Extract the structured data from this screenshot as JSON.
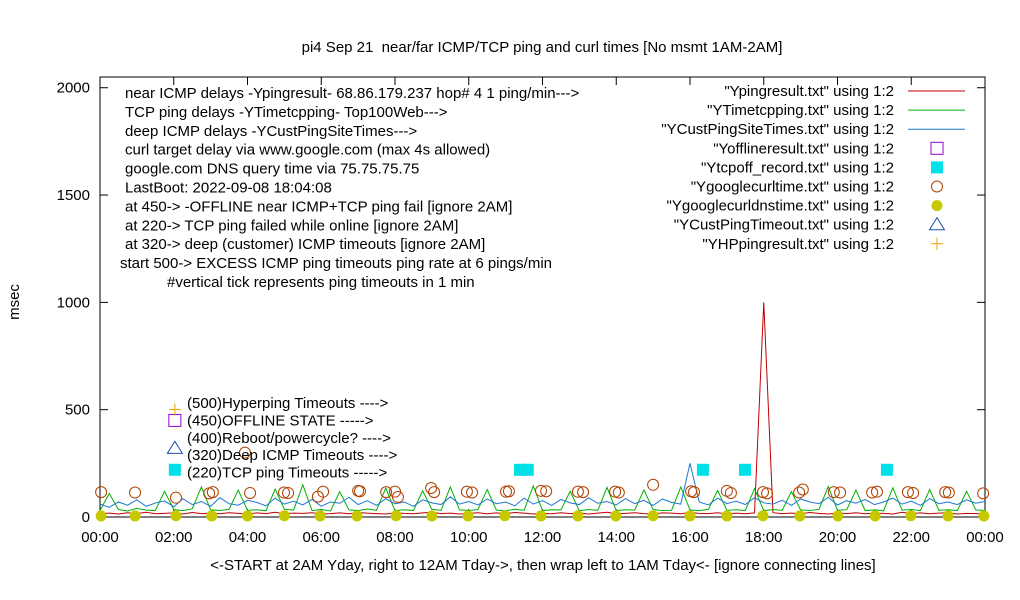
{
  "chart_data": {
    "type": "line",
    "title": "pi4 Sep 21  near/far ICMP/TCP ping and curl times [No msmt 1AM-2AM]",
    "xlabel": "<-START at 2AM Yday, right to 12AM Tday->, then wrap left to 1AM Tday<- [ignore connecting lines]",
    "ylabel": "msec",
    "xlim": [
      0,
      24
    ],
    "ylim": [
      0,
      2050
    ],
    "xticks": [
      {
        "value": 0,
        "label": "00:00"
      },
      {
        "value": 2,
        "label": "02:00"
      },
      {
        "value": 4,
        "label": "04:00"
      },
      {
        "value": 6,
        "label": "06:00"
      },
      {
        "value": 8,
        "label": "08:00"
      },
      {
        "value": 10,
        "label": "10:00"
      },
      {
        "value": 12,
        "label": "12:00"
      },
      {
        "value": 14,
        "label": "14:00"
      },
      {
        "value": 16,
        "label": "16:00"
      },
      {
        "value": 18,
        "label": "18:00"
      },
      {
        "value": 20,
        "label": "20:00"
      },
      {
        "value": 22,
        "label": "22:00"
      },
      {
        "value": 24,
        "label": "00:00"
      }
    ],
    "yticks": [
      0,
      500,
      1000,
      1500,
      2000
    ],
    "annotations": [
      "near ICMP delays -Ypingresult- 68.86.179.237 hop# 4 1 ping/min--->",
      "TCP ping delays -YTimetcpping- Top100Web--->",
      "deep ICMP delays -YCustPingSiteTimes--->",
      "curl target delay via www.google.com (max 4s allowed)",
      "google.com DNS query time via 75.75.75.75",
      "LastBoot: 2022-09-08 18:04:08",
      "at 450-> -OFFLINE near ICMP+TCP ping fail [ignore 2AM]",
      "at 220-> TCP ping failed while online [ignore 2AM]",
      "at 320-> deep (customer) ICMP timeouts [ignore 2AM]",
      "start 500-> EXCESS ICMP ping timeouts ping rate at 6 pings/min",
      "#vertical tick represents ping timeouts in 1 min"
    ],
    "key_notes": [
      "(500)Hyperping Timeouts ---->",
      "(450)OFFLINE STATE ----->",
      "(400)Reboot/powercycle? ---->",
      "(320)Deep ICMP Timeouts ---->",
      "(220)TCP ping Timeouts ----->"
    ],
    "x": [
      0,
      0.25,
      0.5,
      0.75,
      1,
      1.25,
      1.5,
      1.75,
      2,
      2.25,
      2.5,
      2.75,
      3,
      3.25,
      3.5,
      3.75,
      4,
      4.25,
      4.5,
      4.75,
      5,
      5.25,
      5.5,
      5.75,
      6,
      6.25,
      6.5,
      6.75,
      7,
      7.25,
      7.5,
      7.75,
      8,
      8.25,
      8.5,
      8.75,
      9,
      9.25,
      9.5,
      9.75,
      10,
      10.25,
      10.5,
      10.75,
      11,
      11.25,
      11.5,
      11.75,
      12,
      12.25,
      12.5,
      12.75,
      13,
      13.25,
      13.5,
      13.75,
      14,
      14.25,
      14.5,
      14.75,
      15,
      15.25,
      15.5,
      15.75,
      16,
      16.25,
      16.5,
      16.75,
      17,
      17.25,
      17.5,
      17.75,
      18,
      18.25,
      18.5,
      18.75,
      19,
      19.25,
      19.5,
      19.75,
      20,
      20.25,
      20.5,
      20.75,
      21,
      21.25,
      21.5,
      21.75,
      22,
      22.25,
      22.5,
      22.75,
      23,
      23.25,
      23.5,
      23.75,
      24
    ],
    "series": [
      {
        "name": "\"Ypingresult.txt\" using 1:2",
        "color": "#c00000",
        "style": "line",
        "values": [
          15,
          18,
          14,
          20,
          16,
          22,
          15,
          17,
          19,
          14,
          21,
          16,
          18,
          15,
          20,
          17,
          14,
          19,
          16,
          22,
          15,
          18,
          17,
          20,
          14,
          16,
          19,
          15,
          21,
          18,
          16,
          14,
          20,
          17,
          15,
          19,
          22,
          16,
          18,
          14,
          17,
          20,
          15,
          19,
          16,
          21,
          18,
          14,
          17,
          15,
          20,
          16,
          19,
          14,
          18,
          22,
          15,
          17,
          20,
          16,
          14,
          19,
          18,
          15,
          21,
          17,
          16,
          20,
          14,
          18,
          15,
          19,
          1000,
          20,
          16,
          18,
          15,
          21,
          17,
          14,
          19,
          16,
          20,
          15,
          18,
          17,
          14,
          22,
          16,
          19,
          15,
          18,
          20,
          14,
          17,
          16,
          15
        ]
      },
      {
        "name": "\"YTimetcpping.txt\" using 1:2",
        "color": "#00b000",
        "style": "line",
        "values": [
          30,
          110,
          35,
          28,
          40,
          32,
          30,
          120,
          35,
          30,
          38,
          140,
          33,
          30,
          36,
          125,
          31,
          34,
          29,
          130,
          36,
          32,
          150,
          30,
          35,
          28,
          118,
          33,
          30,
          37,
          31,
          135,
          29,
          34,
          30,
          122,
          36,
          31,
          140,
          33,
          30,
          35,
          128,
          32,
          29,
          36,
          31,
          145,
          30,
          34,
          33,
          120,
          29,
          35,
          31,
          138,
          30,
          34,
          32,
          126,
          35,
          30,
          31,
          140,
          33,
          29,
          36,
          124,
          31,
          34,
          30,
          132,
          29,
          35,
          31,
          118,
          33,
          30,
          36,
          142,
          31,
          34,
          125,
          30,
          33,
          29,
          136,
          32,
          35,
          30,
          128,
          31,
          34,
          30,
          120,
          33,
          30
        ]
      },
      {
        "name": "\"YCustPingSiteTimes.txt\" using 1:2",
        "color": "#1f78d0",
        "style": "line",
        "values": [
          60,
          45,
          70,
          55,
          80,
          50,
          65,
          75,
          48,
          85,
          58,
          72,
          50,
          90,
          62,
          55,
          78,
          68,
          52,
          88,
          60,
          74,
          56,
          82,
          50,
          70,
          64,
          92,
          58,
          76,
          54,
          86,
          62,
          70,
          50,
          80,
          66,
          58,
          94,
          60,
          72,
          56,
          84,
          62,
          70,
          52,
          88,
          60,
          76,
          54,
          82,
          66,
          58,
          90,
          64,
          72,
          56,
          86,
          62,
          78,
          54,
          84,
          68,
          60,
          250,
          70,
          56,
          88,
          62,
          74,
          58,
          90,
          66,
          60,
          78,
          54,
          84,
          70,
          62,
          92,
          56,
          76,
          64,
          82,
          58,
          70,
          88,
          60,
          74,
          54,
          86,
          62,
          70,
          58,
          80,
          64,
          72
        ]
      },
      {
        "name": "\"Yofflineresult.txt\" using 1:2",
        "color": "#9400d3",
        "style": "points",
        "marker": "square",
        "x": [
          2.03
        ],
        "values": [
          450
        ]
      },
      {
        "name": "\"Ytcpoff_record.txt\" using 1:2",
        "color": "#00e0e8",
        "style": "points",
        "marker": "filled-square",
        "x": [
          2.03,
          11.39,
          11.6,
          16.35,
          17.49,
          21.34
        ],
        "values": [
          220,
          220,
          220,
          220,
          220,
          220
        ]
      },
      {
        "name": "\"Ygooglecurltime.txt\" using 1:2",
        "color": "#b04000",
        "style": "points",
        "marker": "circle",
        "x": [
          0.03,
          0.95,
          2.06,
          2.96,
          3.06,
          3.93,
          4.07,
          4.99,
          5.1,
          5.91,
          6.05,
          7.0,
          7.05,
          7.76,
          8.0,
          8.08,
          8.98,
          9.06,
          9.95,
          10.09,
          11.01,
          11.09,
          11.96,
          12.1,
          12.96,
          13.1,
          13.97,
          14.07,
          15.0,
          16.03,
          16.11,
          17.0,
          17.11,
          17.98,
          18.09,
          18.96,
          19.06,
          19.9,
          20.07,
          20.94,
          21.07,
          21.91,
          22.05,
          22.92,
          23.02,
          23.95
        ],
        "values": [
          116,
          114,
          90,
          110,
          116,
          300,
          112,
          114,
          112,
          95,
          118,
          122,
          120,
          116,
          118,
          93,
          135,
          116,
          118,
          114,
          118,
          120,
          122,
          120,
          118,
          116,
          118,
          114,
          150,
          120,
          116,
          122,
          112,
          116,
          110,
          114,
          128,
          116,
          114,
          114,
          118,
          116,
          112,
          116,
          114,
          110
        ]
      },
      {
        "name": "\"Ygooglecurldnstime.txt\" using 1:2",
        "color": "#c8c800",
        "style": "points",
        "marker": "filled-circle",
        "x": [
          0.03,
          0.95,
          2.06,
          3.03,
          4.0,
          5.0,
          5.97,
          6.97,
          8.03,
          9.0,
          9.98,
          10.98,
          11.96,
          12.96,
          13.99,
          15.0,
          16.0,
          17.0,
          17.98,
          18.98,
          20.01,
          21.02,
          21.99,
          23.0,
          23.97
        ],
        "values": [
          5,
          5,
          6,
          5,
          5,
          6,
          5,
          5,
          6,
          5,
          5,
          6,
          5,
          5,
          5,
          6,
          5,
          5,
          6,
          5,
          5,
          5,
          6,
          5,
          5
        ]
      },
      {
        "name": "\"YCustPingTimeout.txt\" using 1:2",
        "color": "#2050b0",
        "style": "points",
        "marker": "triangle",
        "x": [
          2.03
        ],
        "values": [
          320
        ]
      },
      {
        "name": "\"YHPpingresult.txt\" using 1:2",
        "color": "#f0a000",
        "style": "points",
        "marker": "plus",
        "x": [
          2.03
        ],
        "values": [
          500
        ]
      }
    ]
  }
}
